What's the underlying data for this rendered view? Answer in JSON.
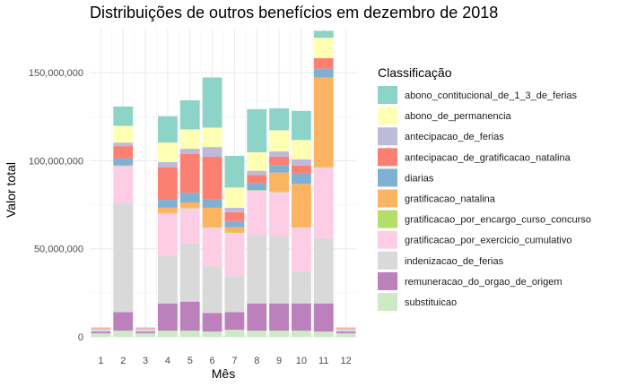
{
  "chart_data": {
    "type": "bar",
    "stacked": true,
    "title": "Distribuições de outros benefícios em dezembro de 2018",
    "xlabel": "Mês",
    "ylabel": "Valor total",
    "categories": [
      "1",
      "2",
      "3",
      "4",
      "5",
      "6",
      "7",
      "8",
      "9",
      "10",
      "11",
      "12"
    ],
    "ylim": [
      0,
      175000000
    ],
    "yticks": [
      0,
      50000000,
      100000000,
      150000000
    ],
    "ytick_labels": [
      "0",
      "50,000,000",
      "100,000,000",
      "150,000,000"
    ],
    "grid": true,
    "legend_position": "right",
    "legend_title": "Classificação",
    "series": [
      {
        "name": "substituicao",
        "color": "#CCEBC5",
        "values": [
          2000000,
          3500000,
          2000000,
          3500000,
          3500000,
          3000000,
          4000000,
          3500000,
          3500000,
          3500000,
          3000000,
          2000000
        ]
      },
      {
        "name": "remuneracao_do_orgao_de_origem",
        "color": "#BC80BD",
        "values": [
          1000000,
          10500000,
          1000000,
          15500000,
          16500000,
          10500000,
          10000000,
          15500000,
          15500000,
          15500000,
          16000000,
          1000000
        ]
      },
      {
        "name": "indenizacao_de_ferias",
        "color": "#D9D9D9",
        "values": [
          1000000,
          62000000,
          1000000,
          27000000,
          33000000,
          26500000,
          20500000,
          38500000,
          38000000,
          18000000,
          37000000,
          1000000
        ]
      },
      {
        "name": "gratificacao_por_exercicio_cumulativo",
        "color": "#FCCDE5",
        "values": [
          300000,
          21000000,
          300000,
          24000000,
          20000000,
          22000000,
          24500000,
          25500000,
          25000000,
          25000000,
          40000000,
          300000
        ]
      },
      {
        "name": "gratificacao_por_encargo_curso_concurso",
        "color": "#B3DE69",
        "values": [
          0,
          300000,
          0,
          300000,
          300000,
          300000,
          300000,
          300000,
          300000,
          300000,
          300000,
          0
        ]
      },
      {
        "name": "gratificacao_natalina",
        "color": "#FDB462",
        "values": [
          0,
          0,
          0,
          3000000,
          3000000,
          11000000,
          3000000,
          0,
          11000000,
          24500000,
          51000000,
          0
        ]
      },
      {
        "name": "diarias",
        "color": "#80B1D3",
        "values": [
          200000,
          4000000,
          200000,
          4500000,
          5500000,
          5000000,
          3500000,
          4000000,
          4000000,
          6000000,
          5000000,
          200000
        ]
      },
      {
        "name": "antecipacao_de_gratificacao_natalina",
        "color": "#FB8072",
        "values": [
          300000,
          7000000,
          300000,
          18500000,
          22000000,
          24000000,
          5000000,
          4500000,
          5000000,
          4500000,
          6000000,
          300000
        ]
      },
      {
        "name": "antecipacao_de_ferias",
        "color": "#BEBADA",
        "values": [
          200000,
          2000000,
          200000,
          3000000,
          3000000,
          5500000,
          2500000,
          2500000,
          3000000,
          3500000,
          0,
          200000
        ]
      },
      {
        "name": "abono_de_permanencia",
        "color": "#FFFFB3",
        "values": [
          300000,
          9500000,
          300000,
          11000000,
          11000000,
          11000000,
          11500000,
          10500000,
          12000000,
          11000000,
          11500000,
          300000
        ]
      },
      {
        "name": "abono_contitucional_de_1_3_de_ferias",
        "color": "#8DD3C7",
        "values": [
          200000,
          11000000,
          200000,
          15000000,
          16500000,
          28500000,
          18000000,
          24500000,
          12500000,
          16500000,
          4000000,
          200000
        ]
      }
    ]
  }
}
